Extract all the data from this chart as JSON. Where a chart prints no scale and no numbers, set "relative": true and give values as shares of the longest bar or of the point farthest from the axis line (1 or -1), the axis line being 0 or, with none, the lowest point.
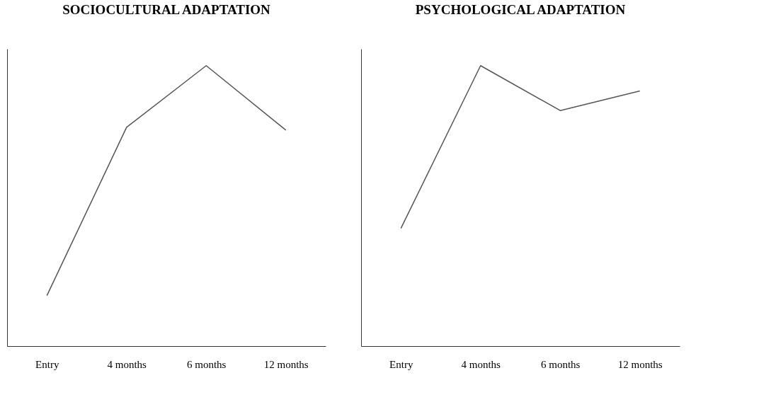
{
  "chart_data": [
    {
      "type": "line",
      "title": "SOCIOCULTURAL ADAPTATION",
      "relative": true,
      "categories": [
        "Entry",
        "4 months",
        "6 months",
        "12 months"
      ],
      "series": [
        {
          "color": "#555555",
          "values": [
            0.18,
            0.78,
            1,
            0.77
          ]
        }
      ],
      "grid": false,
      "legend": false,
      "marker": "none",
      "line_style": "solid",
      "tick_labels": "x"
    },
    {
      "type": "line",
      "title": "PSYCHOLOGICAL ADAPTATION",
      "relative": true,
      "categories": [
        "Entry",
        "4 months",
        "6 months",
        "12 months"
      ],
      "series": [
        {
          "color": "#555555",
          "values": [
            0.42,
            1,
            0.84,
            0.91
          ]
        }
      ],
      "grid": false,
      "legend": false,
      "marker": "none",
      "line_style": "solid",
      "tick_labels": "x"
    }
  ]
}
